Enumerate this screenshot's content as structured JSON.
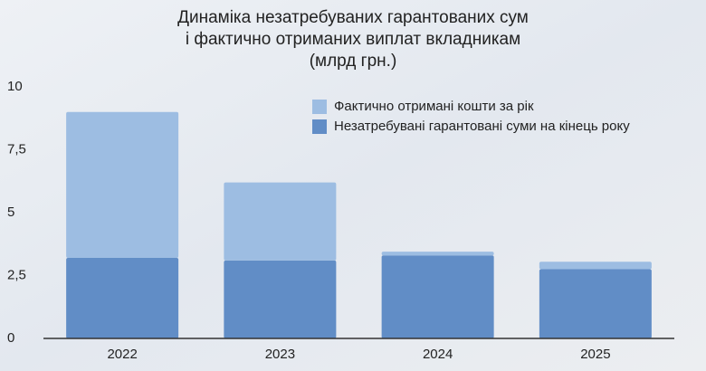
{
  "chart_data": {
    "type": "stacked_bar",
    "title": [
      "Динаміка незатребуваних гарантованих сум",
      "і фактично отриманих виплат вкладникам",
      "(млрд грн.)"
    ],
    "categories": [
      "2022",
      "2023",
      "2024",
      "2025"
    ],
    "series": [
      {
        "name": "Фактично отримані кошти за рік",
        "color": "#9dbde2",
        "values": [
          5.8,
          3.1,
          0.15,
          0.3
        ]
      },
      {
        "name": "Незатребувані гарантовані суми на кінець року",
        "color": "#618dc6",
        "values": [
          3.2,
          3.1,
          3.3,
          2.75
        ]
      }
    ],
    "ylim": [
      0,
      10
    ],
    "yticks": [
      0,
      {
        "value": 2.5,
        "label": "2,5"
      },
      5,
      {
        "value": 7.5,
        "label": "7,5"
      },
      10
    ],
    "grid": false,
    "legend": "top-right"
  }
}
